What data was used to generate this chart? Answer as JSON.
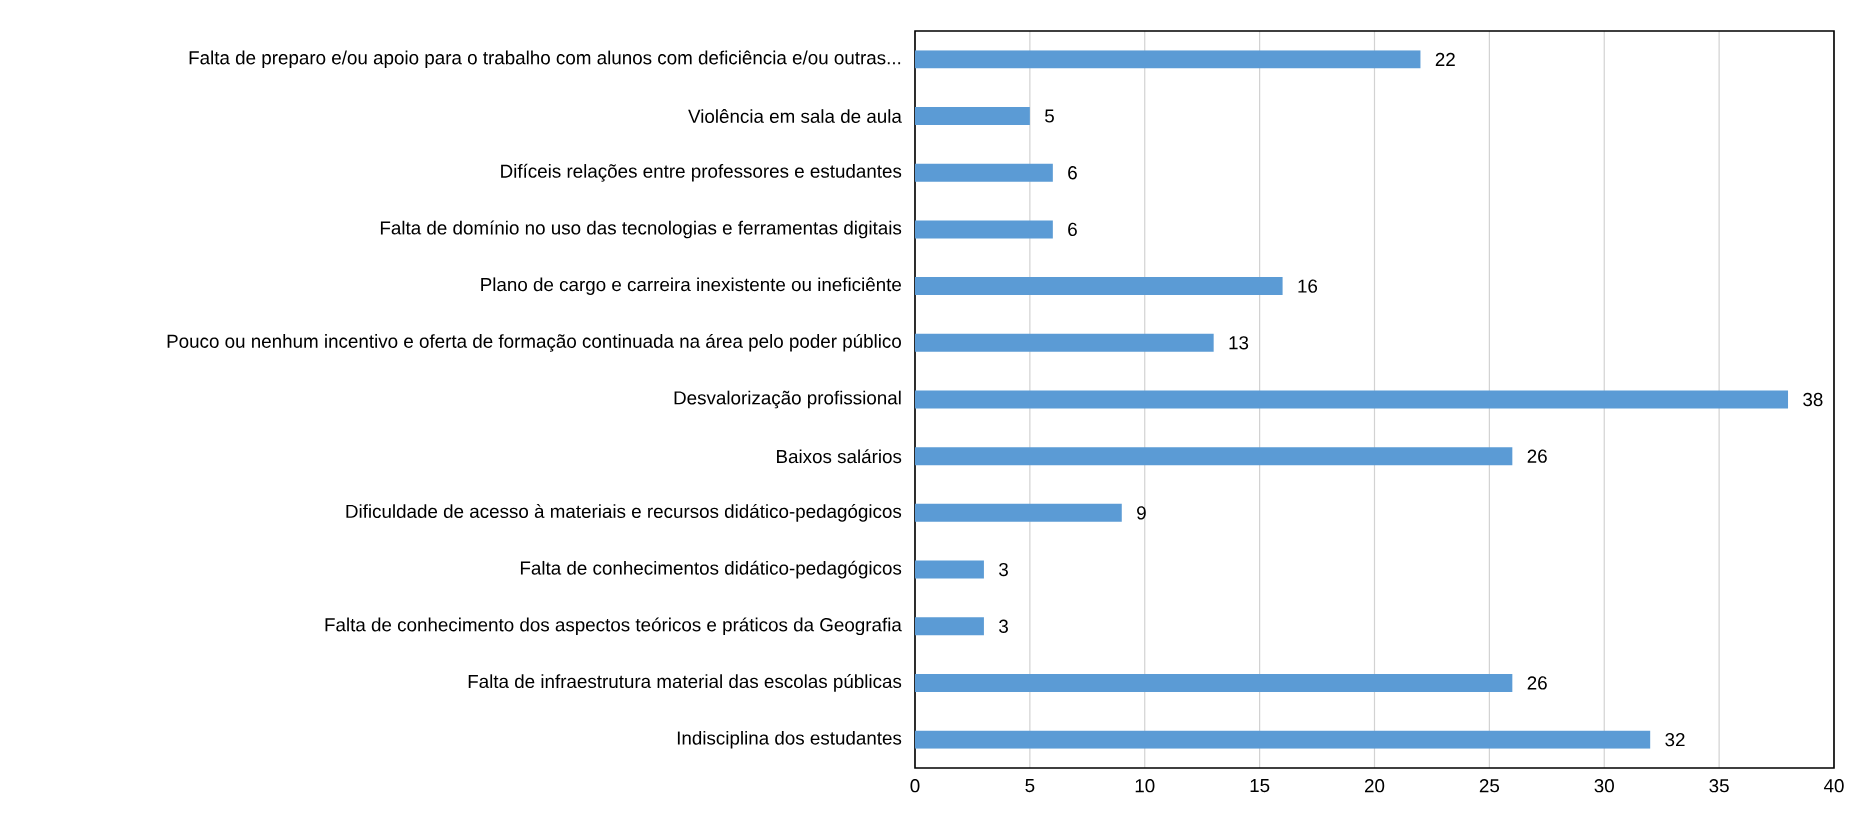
{
  "chart_data": {
    "type": "bar",
    "orientation": "horizontal",
    "categories": [
      "Falta de preparo e/ou apoio para o trabalho com alunos com deficiência e/ou outras...",
      "Violência em sala de aula",
      "Difíceis relações entre professores e estudantes",
      "Falta de domínio no uso das tecnologias e ferramentas digitais",
      "Plano de cargo e carreira inexistente ou ineficiênte",
      "Pouco ou nenhum incentivo e oferta de formação continuada na área pelo poder público",
      "Desvalorização profissional",
      "Baixos salários",
      "Dificuldade de acesso à materiais e recursos didático-pedagógicos",
      "Falta de conhecimentos didático-pedagógicos",
      "Falta de conhecimento dos aspectos teóricos e práticos da Geografia",
      "Falta de infraestrutura material das escolas públicas",
      "Indisciplina dos estudantes"
    ],
    "values": [
      22,
      5,
      6,
      6,
      16,
      13,
      38,
      26,
      9,
      3,
      3,
      26,
      32
    ],
    "color": "#5b9bd5",
    "xlim": [
      0,
      40
    ],
    "xticks": [
      0,
      5,
      10,
      15,
      20,
      25,
      30,
      35,
      40
    ],
    "grid": "x",
    "data_labels": true
  }
}
